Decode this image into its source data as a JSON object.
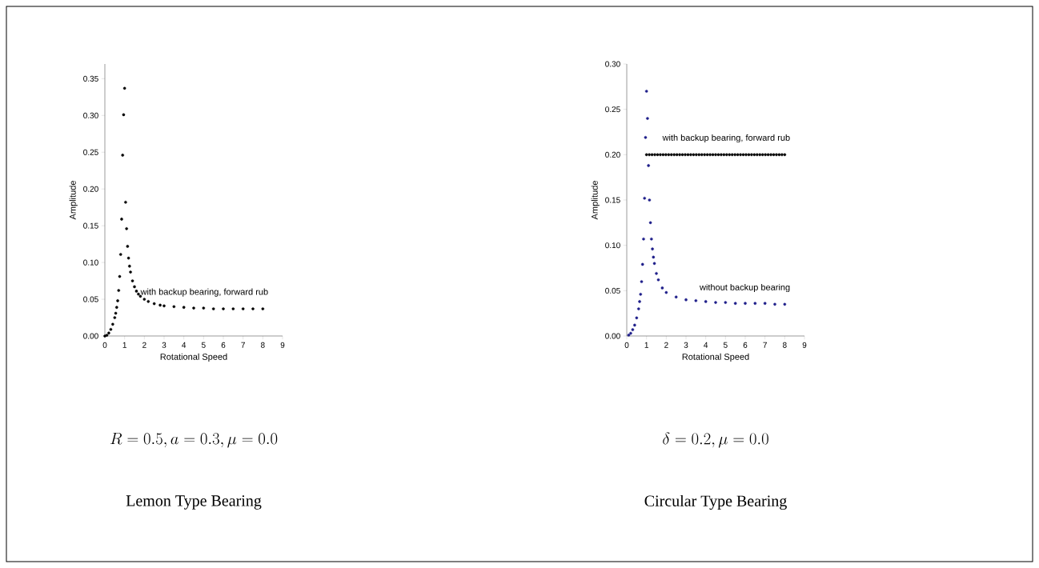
{
  "chart_data": [
    {
      "type": "scatter",
      "xlabel": "Rotational Speed",
      "ylabel": "Amplitude",
      "marker": "circle",
      "xlim": [
        0,
        9
      ],
      "ylim": [
        0,
        0.37
      ],
      "xticks": [
        0,
        1,
        2,
        3,
        4,
        5,
        6,
        7,
        8,
        9
      ],
      "yticks": [
        {
          "value": 0,
          "label": "0.00"
        },
        {
          "value": 0.05,
          "label": "0.05"
        },
        {
          "value": 0.1,
          "label": "0.10"
        },
        {
          "value": 0.15,
          "label": "0.15"
        },
        {
          "value": 0.2,
          "label": "0.20"
        },
        {
          "value": 0.25,
          "label": "0.25"
        },
        {
          "value": 0.3,
          "label": "0.30"
        },
        {
          "value": 0.35,
          "label": "0.35"
        }
      ],
      "series": [
        {
          "name": "with backup bearing, forward rub",
          "color": "#000000",
          "x": [
            0,
            0.1,
            0.2,
            0.3,
            0.4,
            0.5,
            0.55,
            0.6,
            0.65,
            0.7,
            0.75,
            0.8,
            0.85,
            0.9,
            0.95,
            1.0,
            1.05,
            1.1,
            1.15,
            1.2,
            1.25,
            1.3,
            1.4,
            1.5,
            1.6,
            1.7,
            1.8,
            2.0,
            2.2,
            2.5,
            2.8,
            3.0,
            3.5,
            4.0,
            4.5,
            5.0,
            5.5,
            6.0,
            6.5,
            7.0,
            7.5,
            8.0
          ],
          "values": [
            0,
            0.001,
            0.004,
            0.009,
            0.016,
            0.025,
            0.031,
            0.039,
            0.048,
            0.062,
            0.081,
            0.111,
            0.159,
            0.246,
            0.301,
            0.337,
            0.182,
            0.146,
            0.122,
            0.106,
            0.095,
            0.087,
            0.075,
            0.067,
            0.061,
            0.057,
            0.054,
            0.05,
            0.047,
            0.044,
            0.042,
            0.041,
            0.04,
            0.039,
            0.038,
            0.038,
            0.037,
            0.037,
            0.037,
            0.037,
            0.037,
            0.037
          ]
        }
      ],
      "annotations": [
        "R = 0.5, a = 0.3, \\mu = 0.0",
        "Lemon Type Bearing"
      ]
    },
    {
      "type": "scatter",
      "xlabel": "Rotational Speed",
      "ylabel": "Amplitude",
      "marker": "circle",
      "xlim": [
        0,
        9
      ],
      "ylim": [
        0,
        0.3
      ],
      "xticks": [
        0,
        1,
        2,
        3,
        4,
        5,
        6,
        7,
        8,
        9
      ],
      "yticks": [
        {
          "value": 0,
          "label": "0.00"
        },
        {
          "value": 0.05,
          "label": "0.05"
        },
        {
          "value": 0.1,
          "label": "0.10"
        },
        {
          "value": 0.15,
          "label": "0.15"
        },
        {
          "value": 0.2,
          "label": "0.20"
        },
        {
          "value": 0.25,
          "label": "0.25"
        },
        {
          "value": 0.3,
          "label": "0.30"
        }
      ],
      "series": [
        {
          "name": "with backup bearing, forward rub",
          "color": "#000000",
          "x": [
            1.0,
            1.14,
            1.28,
            1.42,
            1.56,
            1.7,
            1.84,
            1.98,
            2.12,
            2.26,
            2.4,
            2.54,
            2.68,
            2.82,
            2.96,
            3.1,
            3.24,
            3.38,
            3.52,
            3.66,
            3.8,
            3.94,
            4.08,
            4.22,
            4.36,
            4.5,
            4.64,
            4.78,
            4.92,
            5.06,
            5.2,
            5.34,
            5.48,
            5.62,
            5.76,
            5.9,
            6.04,
            6.18,
            6.32,
            6.46,
            6.6,
            6.74,
            6.88,
            7.02,
            7.16,
            7.3,
            7.44,
            7.58,
            7.72,
            7.86,
            8.0
          ],
          "values": [
            0.2,
            0.2,
            0.2,
            0.2,
            0.2,
            0.2,
            0.2,
            0.2,
            0.2,
            0.2,
            0.2,
            0.2,
            0.2,
            0.2,
            0.2,
            0.2,
            0.2,
            0.2,
            0.2,
            0.2,
            0.2,
            0.2,
            0.2,
            0.2,
            0.2,
            0.2,
            0.2,
            0.2,
            0.2,
            0.2,
            0.2,
            0.2,
            0.2,
            0.2,
            0.2,
            0.2,
            0.2,
            0.2,
            0.2,
            0.2,
            0.2,
            0.2,
            0.2,
            0.2,
            0.2,
            0.2,
            0.2,
            0.2,
            0.2,
            0.2,
            0.2
          ]
        },
        {
          "name": "without backup bearing",
          "color": "#1f1f8a",
          "x": [
            0.1,
            0.2,
            0.3,
            0.4,
            0.5,
            0.6,
            0.65,
            0.7,
            0.75,
            0.8,
            0.85,
            0.9,
            0.95,
            1.0,
            1.05,
            1.1,
            1.15,
            1.2,
            1.25,
            1.3,
            1.35,
            1.4,
            1.5,
            1.6,
            1.8,
            2.0,
            2.5,
            3.0,
            3.5,
            4.0,
            4.5,
            5.0,
            5.5,
            6.0,
            6.5,
            7.0,
            7.5,
            8.0
          ],
          "values": [
            0.001,
            0.003,
            0.007,
            0.012,
            0.02,
            0.03,
            0.038,
            0.046,
            0.06,
            0.079,
            0.107,
            0.152,
            0.219,
            0.27,
            0.24,
            0.188,
            0.15,
            0.125,
            0.107,
            0.096,
            0.087,
            0.08,
            0.069,
            0.062,
            0.053,
            0.048,
            0.043,
            0.04,
            0.039,
            0.038,
            0.037,
            0.037,
            0.036,
            0.036,
            0.036,
            0.036,
            0.035,
            0.035
          ]
        }
      ],
      "annotations": [
        "\\delta = 0.2, \\mu = 0.0",
        "Circular Type Bearing"
      ]
    }
  ]
}
